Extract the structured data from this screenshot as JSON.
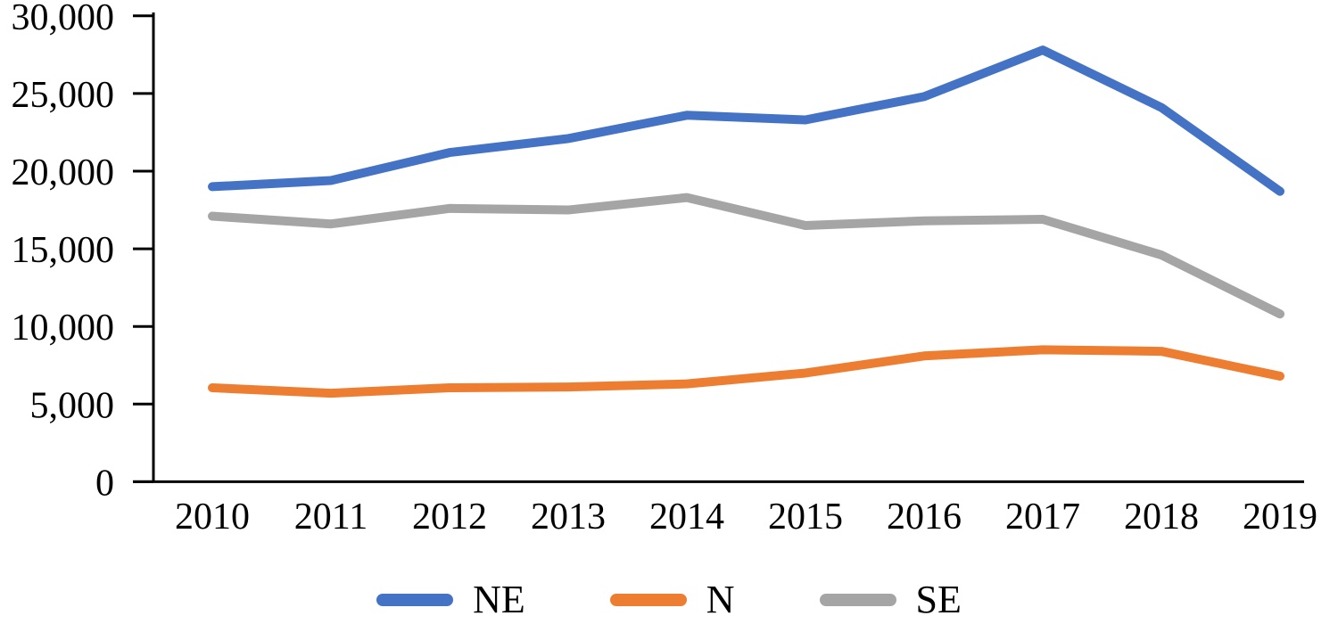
{
  "chart_data": {
    "type": "line",
    "title": "",
    "xlabel": "",
    "ylabel": "",
    "categories": [
      "2010",
      "2011",
      "2012",
      "2013",
      "2014",
      "2015",
      "2016",
      "2017",
      "2018",
      "2019"
    ],
    "series": [
      {
        "name": "NE",
        "color": "#4472C4",
        "values": [
          19000,
          19400,
          21200,
          22100,
          23600,
          23300,
          24800,
          27800,
          24100,
          18700
        ]
      },
      {
        "name": "N",
        "color": "#ED7D31",
        "values": [
          6050,
          5700,
          6050,
          6100,
          6300,
          7000,
          8100,
          8500,
          8400,
          6800
        ]
      },
      {
        "name": "SE",
        "color": "#A5A5A5",
        "values": [
          17100,
          16600,
          17600,
          17500,
          18300,
          16500,
          16800,
          16900,
          14600,
          10800
        ]
      }
    ],
    "ylim": [
      0,
      30000
    ],
    "ytick_step": 5000,
    "ytick_labels": [
      "0",
      "5,000",
      "10,000",
      "15,000",
      "20,000",
      "25,000",
      "30,000"
    ],
    "grid": false,
    "legend_position": "bottom",
    "axis_color": "#000000"
  }
}
